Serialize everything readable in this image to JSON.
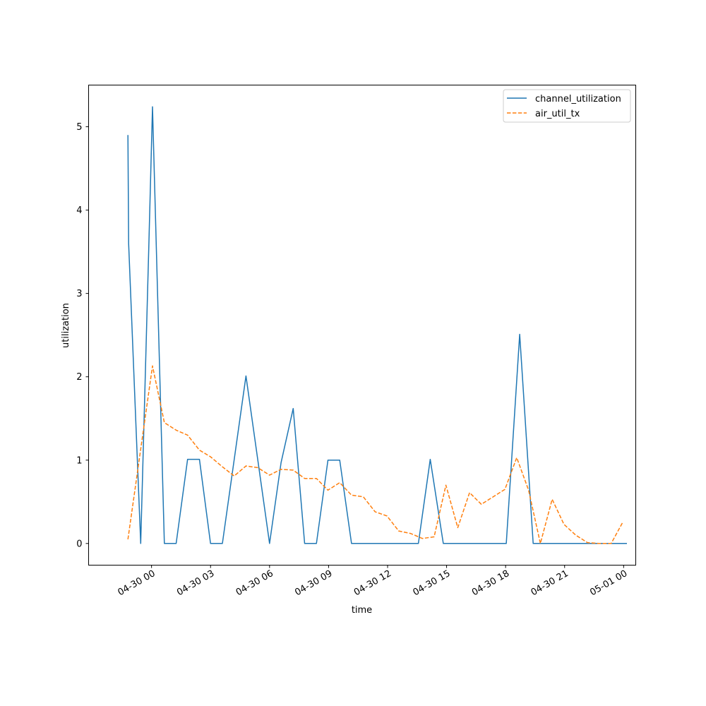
{
  "chart_data": {
    "type": "line",
    "title": "",
    "xlabel": "time",
    "ylabel": "utilization",
    "xlim": [
      "2024-04-29 20:48",
      "2024-05-01 00:37"
    ],
    "ylim": [
      -0.26,
      5.5
    ],
    "x_ticks": [
      {
        "value": "2024-04-30 00:00",
        "label": "04-30 00"
      },
      {
        "value": "2024-04-30 03:00",
        "label": "04-30 03"
      },
      {
        "value": "2024-04-30 06:00",
        "label": "04-30 06"
      },
      {
        "value": "2024-04-30 09:00",
        "label": "04-30 09"
      },
      {
        "value": "2024-04-30 12:00",
        "label": "04-30 12"
      },
      {
        "value": "2024-04-30 15:00",
        "label": "04-30 15"
      },
      {
        "value": "2024-04-30 18:00",
        "label": "04-30 18"
      },
      {
        "value": "2024-04-30 21:00",
        "label": "04-30 21"
      },
      {
        "value": "2024-05-01 00:00",
        "label": "05-01 00"
      }
    ],
    "y_ticks": [
      {
        "value": 0,
        "label": "0"
      },
      {
        "value": 1,
        "label": "1"
      },
      {
        "value": 2,
        "label": "2"
      },
      {
        "value": 3,
        "label": "3"
      },
      {
        "value": 4,
        "label": "4"
      },
      {
        "value": 5,
        "label": "5"
      }
    ],
    "grid": false,
    "legend": "top-right",
    "series": [
      {
        "name": "channel_utilization",
        "color": "#1f77b4",
        "style": "solid",
        "points": [
          [
            "2024-04-29 22:48",
            4.9
          ],
          [
            "2024-04-29 22:50",
            3.6
          ],
          [
            "2024-04-29 23:27",
            0.0
          ],
          [
            "2024-04-29 23:52",
            3.6
          ],
          [
            "2024-04-30 00:03",
            5.24
          ],
          [
            "2024-04-30 00:39",
            0.0
          ],
          [
            "2024-04-30 01:15",
            0.0
          ],
          [
            "2024-04-30 01:50",
            1.01
          ],
          [
            "2024-04-30 02:26",
            1.01
          ],
          [
            "2024-04-30 03:00",
            0.0
          ],
          [
            "2024-04-30 03:36",
            0.0
          ],
          [
            "2024-04-30 04:48",
            2.01
          ],
          [
            "2024-04-30 06:00",
            0.0
          ],
          [
            "2024-04-30 06:35",
            0.97
          ],
          [
            "2024-04-30 07:12",
            1.62
          ],
          [
            "2024-04-30 07:47",
            0.0
          ],
          [
            "2024-04-30 08:23",
            0.0
          ],
          [
            "2024-04-30 08:58",
            1.0
          ],
          [
            "2024-04-30 09:34",
            1.0
          ],
          [
            "2024-04-30 10:10",
            0.0
          ],
          [
            "2024-04-30 12:58",
            0.0
          ],
          [
            "2024-04-30 13:34",
            0.0
          ],
          [
            "2024-04-30 14:10",
            1.01
          ],
          [
            "2024-04-30 14:50",
            0.0
          ],
          [
            "2024-04-30 18:02",
            0.0
          ],
          [
            "2024-04-30 18:43",
            2.51
          ],
          [
            "2024-04-30 19:24",
            0.0
          ],
          [
            "2024-05-01 00:10",
            0.0
          ]
        ]
      },
      {
        "name": "air_util_tx",
        "color": "#ff7f0e",
        "style": "dashed",
        "points": [
          [
            "2024-04-29 22:48",
            0.05
          ],
          [
            "2024-04-30 00:03",
            2.13
          ],
          [
            "2024-04-30 00:39",
            1.45
          ],
          [
            "2024-04-30 01:15",
            1.36
          ],
          [
            "2024-04-30 01:50",
            1.3
          ],
          [
            "2024-04-30 02:26",
            1.12
          ],
          [
            "2024-04-30 03:00",
            1.04
          ],
          [
            "2024-04-30 03:36",
            0.92
          ],
          [
            "2024-04-30 04:12",
            0.81
          ],
          [
            "2024-04-30 04:48",
            0.93
          ],
          [
            "2024-04-30 05:24",
            0.91
          ],
          [
            "2024-04-30 06:00",
            0.82
          ],
          [
            "2024-04-30 06:35",
            0.89
          ],
          [
            "2024-04-30 07:12",
            0.88
          ],
          [
            "2024-04-30 07:47",
            0.78
          ],
          [
            "2024-04-30 08:23",
            0.78
          ],
          [
            "2024-04-30 08:58",
            0.64
          ],
          [
            "2024-04-30 09:34",
            0.73
          ],
          [
            "2024-04-30 10:10",
            0.58
          ],
          [
            "2024-04-30 10:46",
            0.56
          ],
          [
            "2024-04-30 11:22",
            0.38
          ],
          [
            "2024-04-30 11:58",
            0.33
          ],
          [
            "2024-04-30 12:34",
            0.15
          ],
          [
            "2024-04-30 13:10",
            0.12
          ],
          [
            "2024-04-30 13:46",
            0.06
          ],
          [
            "2024-04-30 14:22",
            0.08
          ],
          [
            "2024-04-30 14:58",
            0.7
          ],
          [
            "2024-04-30 15:34",
            0.19
          ],
          [
            "2024-04-30 16:10",
            0.61
          ],
          [
            "2024-04-30 16:46",
            0.47
          ],
          [
            "2024-04-30 17:22",
            0.56
          ],
          [
            "2024-04-30 17:58",
            0.65
          ],
          [
            "2024-04-30 18:34",
            1.03
          ],
          [
            "2024-04-30 19:10",
            0.64
          ],
          [
            "2024-04-30 19:46",
            0.0
          ],
          [
            "2024-04-30 20:22",
            0.53
          ],
          [
            "2024-04-30 20:58",
            0.23
          ],
          [
            "2024-04-30 21:34",
            0.1
          ],
          [
            "2024-04-30 22:10",
            0.01
          ],
          [
            "2024-04-30 22:46",
            0.0
          ],
          [
            "2024-04-30 23:22",
            0.0
          ],
          [
            "2024-04-30 23:58",
            0.26
          ]
        ]
      }
    ]
  }
}
